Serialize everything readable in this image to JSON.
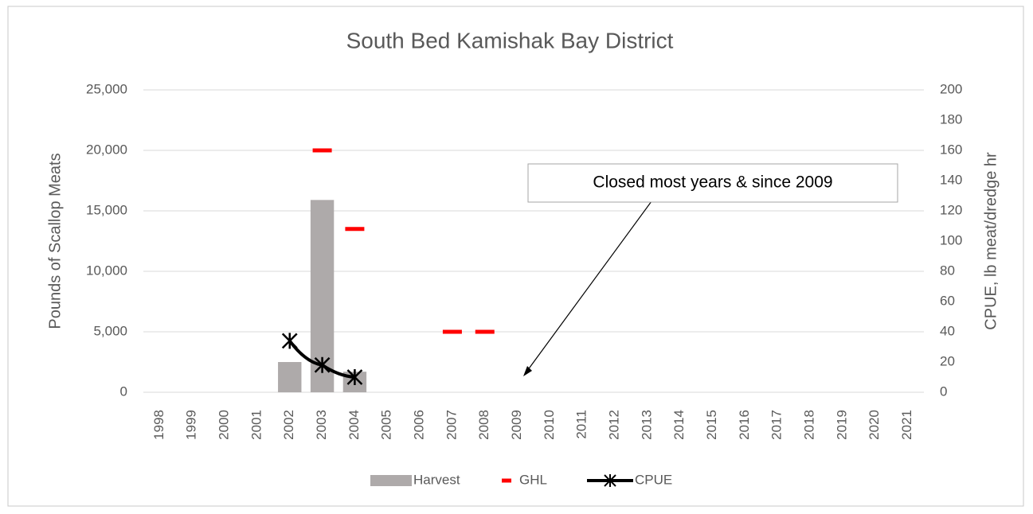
{
  "chart_data": {
    "type": "bar",
    "title": "South Bed Kamishak Bay District",
    "categories": [
      "1998",
      "1999",
      "2000",
      "2001",
      "2002",
      "2003",
      "2004",
      "2005",
      "2006",
      "2007",
      "2008",
      "2009",
      "2010",
      "2011",
      "2012",
      "2013",
      "2014",
      "2015",
      "2016",
      "2017",
      "2018",
      "2019",
      "2020",
      "2021"
    ],
    "series": [
      {
        "name": "Harvest",
        "type": "bar",
        "color": "#aeaaaa",
        "values": [
          null,
          null,
          null,
          null,
          2500,
          15900,
          1700,
          null,
          null,
          null,
          null,
          null,
          null,
          null,
          null,
          null,
          null,
          null,
          null,
          null,
          null,
          null,
          null,
          null
        ]
      },
      {
        "name": "GHL",
        "type": "dash",
        "color": "#ff0000",
        "values": [
          null,
          null,
          null,
          null,
          null,
          20000,
          13500,
          null,
          null,
          5000,
          5000,
          null,
          null,
          null,
          null,
          null,
          null,
          null,
          null,
          null,
          null,
          null,
          null,
          null
        ]
      },
      {
        "name": "CPUE",
        "type": "line",
        "axis": "y2",
        "color": "#000000",
        "values": [
          null,
          null,
          null,
          null,
          34,
          18,
          10,
          null,
          null,
          null,
          null,
          null,
          null,
          null,
          null,
          null,
          null,
          null,
          null,
          null,
          null,
          null,
          null,
          null
        ]
      }
    ],
    "ylabel": "Pounds of Scallop Meats",
    "y2label": "CPUE, lb meat/dredge hr",
    "ylim": [
      0,
      25000
    ],
    "yticks": [
      0,
      {
        "value": 5000,
        "label": "5,000"
      },
      {
        "value": 10000,
        "label": "10,000"
      },
      {
        "value": 15000,
        "label": "15,000"
      },
      {
        "value": 20000,
        "label": "20,000"
      },
      {
        "value": 25000,
        "label": "25,000"
      }
    ],
    "y2lim": [
      0,
      200
    ],
    "y2ticks": [
      0,
      20,
      40,
      60,
      80,
      100,
      120,
      140,
      160,
      180,
      200
    ],
    "grid": true,
    "legend": "bottom",
    "annotation": "Closed most years & since 2009"
  }
}
